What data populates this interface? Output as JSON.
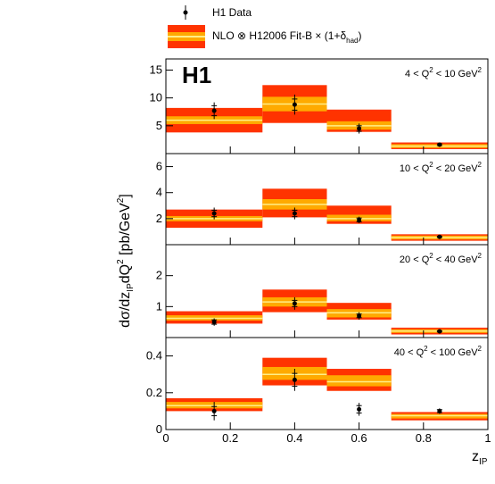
{
  "chart_data": {
    "type": "bar",
    "experiment_label": "H1",
    "legend": {
      "data_label": "H1 Data",
      "band_label_prefix": "NLO ⊗ H12006 Fit-B × (1+δ",
      "band_label_sub": "had",
      "band_label_suffix": ")"
    },
    "colors": {
      "outer_band": "#ff3300",
      "inner_band": "#ffaa00",
      "central_line": "#ffee88",
      "data": "#000000"
    },
    "ylabel": "dσ/dz_IP dQ² [pb/GeV²]",
    "xlabel": "z_IP",
    "xlim": [
      0,
      1
    ],
    "x_ticks": [
      "0",
      "0.2",
      "0.4",
      "0.6",
      "0.8",
      "1"
    ],
    "x_tick_values": [
      0,
      0.2,
      0.4,
      0.6,
      0.8,
      1
    ],
    "bin_edges": [
      0.0,
      0.3,
      0.5,
      0.7,
      1.0
    ],
    "panels": [
      {
        "q2_label_prefix": "4 < Q",
        "q2_label_suffix": " < 10 GeV",
        "ylim": [
          0,
          17
        ],
        "y_ticks": [
          "5",
          "10",
          "15"
        ],
        "y_tick_values": [
          5,
          10,
          15
        ],
        "bands": [
          {
            "outer": [
              3.8,
              8.2
            ],
            "inner": [
              5.3,
              6.7
            ],
            "central": 6.0
          },
          {
            "outer": [
              5.5,
              12.3
            ],
            "inner": [
              7.6,
              10.2
            ],
            "central": 8.9
          },
          {
            "outer": [
              3.9,
              7.9
            ],
            "inner": [
              4.3,
              5.8
            ],
            "central": 5.0
          },
          {
            "outer": [
              0.8,
              2.0
            ],
            "inner": [
              1.0,
              1.7
            ],
            "central": 1.35
          }
        ],
        "data": [
          {
            "x": 0.15,
            "y": 7.7,
            "err_stat": 0.9,
            "err_tot": 1.5
          },
          {
            "x": 0.4,
            "y": 8.8,
            "err_stat": 1.0,
            "err_tot": 1.8
          },
          {
            "x": 0.6,
            "y": 4.5,
            "err_stat": 0.5,
            "err_tot": 0.9
          },
          {
            "x": 0.85,
            "y": 1.6,
            "err_stat": 0.15,
            "err_tot": 0.3
          }
        ]
      },
      {
        "q2_label_prefix": "10 < Q",
        "q2_label_suffix": " < 20 GeV",
        "ylim": [
          0,
          7
        ],
        "y_ticks": [
          "2",
          "4",
          "6"
        ],
        "y_tick_values": [
          2,
          4,
          6
        ],
        "bands": [
          {
            "outer": [
              1.3,
              2.7
            ],
            "inner": [
              1.8,
              2.2
            ],
            "central": 2.0
          },
          {
            "outer": [
              2.1,
              4.3
            ],
            "inner": [
              2.7,
              3.5
            ],
            "central": 3.1
          },
          {
            "outer": [
              1.6,
              3.0
            ],
            "inner": [
              1.8,
              2.3
            ],
            "central": 2.0
          },
          {
            "outer": [
              0.3,
              0.8
            ],
            "inner": [
              0.4,
              0.7
            ],
            "central": 0.55
          }
        ],
        "data": [
          {
            "x": 0.15,
            "y": 2.4,
            "err_stat": 0.25,
            "err_tot": 0.45
          },
          {
            "x": 0.4,
            "y": 2.4,
            "err_stat": 0.25,
            "err_tot": 0.45
          },
          {
            "x": 0.6,
            "y": 1.9,
            "err_stat": 0.15,
            "err_tot": 0.25
          },
          {
            "x": 0.85,
            "y": 0.6,
            "err_stat": 0.05,
            "err_tot": 0.1
          }
        ]
      },
      {
        "q2_label_prefix": "20 < Q",
        "q2_label_suffix": " < 40 GeV",
        "ylim": [
          0,
          3
        ],
        "y_ticks": [
          "1",
          "2"
        ],
        "y_tick_values": [
          1,
          2
        ],
        "bands": [
          {
            "outer": [
              0.45,
              0.85
            ],
            "inner": [
              0.55,
              0.72
            ],
            "central": 0.62
          },
          {
            "outer": [
              0.82,
              1.55
            ],
            "inner": [
              1.0,
              1.3
            ],
            "central": 1.15
          },
          {
            "outer": [
              0.58,
              1.12
            ],
            "inner": [
              0.65,
              0.92
            ],
            "central": 0.8
          },
          {
            "outer": [
              0.1,
              0.32
            ],
            "inner": [
              0.15,
              0.27
            ],
            "central": 0.21
          }
        ],
        "data": [
          {
            "x": 0.15,
            "y": 0.5,
            "err_stat": 0.07,
            "err_tot": 0.12
          },
          {
            "x": 0.4,
            "y": 1.1,
            "err_stat": 0.1,
            "err_tot": 0.2
          },
          {
            "x": 0.6,
            "y": 0.7,
            "err_stat": 0.06,
            "err_tot": 0.12
          },
          {
            "x": 0.85,
            "y": 0.2,
            "err_stat": 0.02,
            "err_tot": 0.04
          }
        ]
      },
      {
        "q2_label_prefix": "40 < Q",
        "q2_label_suffix": " < 100 GeV",
        "ylim": [
          0,
          0.5
        ],
        "y_ticks": [
          "0",
          "0.2",
          "0.4"
        ],
        "y_tick_values": [
          0,
          0.2,
          0.4
        ],
        "bands": [
          {
            "outer": [
              0.1,
              0.17
            ],
            "inner": [
              0.115,
              0.15
            ],
            "central": 0.13
          },
          {
            "outer": [
              0.24,
              0.39
            ],
            "inner": [
              0.27,
              0.34
            ],
            "central": 0.3
          },
          {
            "outer": [
              0.21,
              0.33
            ],
            "inner": [
              0.235,
              0.295
            ],
            "central": 0.26
          },
          {
            "outer": [
              0.05,
              0.095
            ],
            "inner": [
              0.06,
              0.085
            ],
            "central": 0.075
          }
        ],
        "data": [
          {
            "x": 0.15,
            "y": 0.1,
            "err_stat": 0.025,
            "err_tot": 0.05
          },
          {
            "x": 0.4,
            "y": 0.27,
            "err_stat": 0.035,
            "err_tot": 0.06
          },
          {
            "x": 0.6,
            "y": 0.11,
            "err_stat": 0.02,
            "err_tot": 0.035
          },
          {
            "x": 0.85,
            "y": 0.1,
            "err_stat": 0.008,
            "err_tot": 0.015
          }
        ]
      }
    ]
  }
}
